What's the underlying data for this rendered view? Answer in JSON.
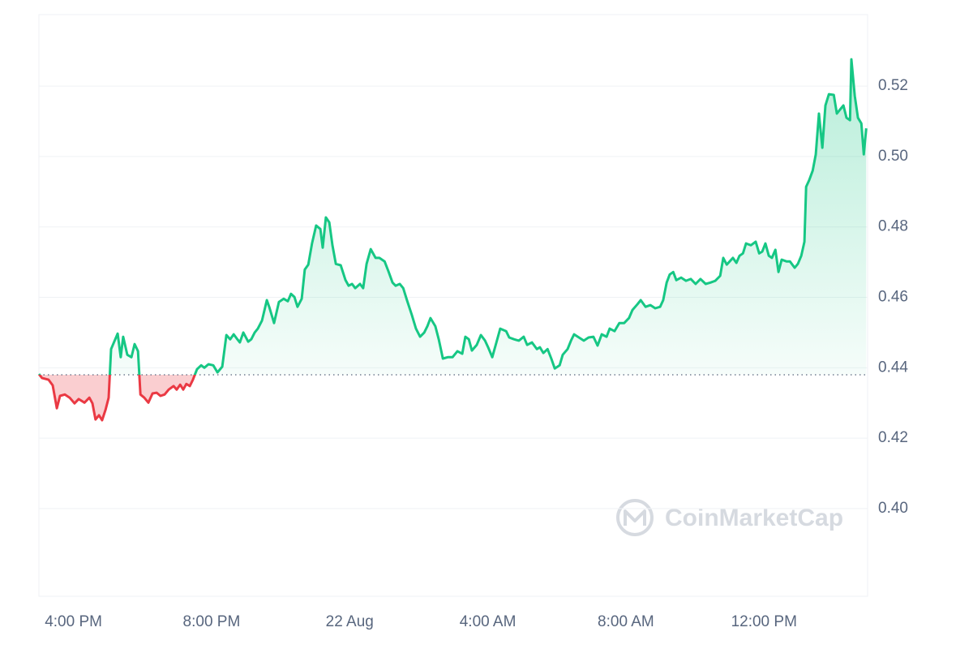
{
  "chart_data": {
    "type": "area",
    "watermark": "CoinMarketCap",
    "x": [
      15.0,
      15.09,
      15.28,
      15.4,
      15.52,
      15.61,
      15.75,
      15.89,
      16.03,
      16.15,
      16.32,
      16.46,
      16.55,
      16.64,
      16.74,
      16.83,
      16.93,
      17.02,
      17.09,
      17.28,
      17.37,
      17.44,
      17.56,
      17.68,
      17.77,
      17.87,
      17.94,
      18.05,
      18.17,
      18.29,
      18.41,
      18.52,
      18.64,
      18.76,
      18.9,
      18.99,
      19.09,
      19.18,
      19.27,
      19.37,
      19.46,
      19.58,
      19.7,
      19.79,
      19.91,
      20.05,
      20.17,
      20.31,
      20.43,
      20.54,
      20.64,
      20.73,
      20.82,
      20.92,
      21.06,
      21.15,
      21.25,
      21.34,
      21.46,
      21.6,
      21.67,
      21.81,
      21.95,
      22.09,
      22.21,
      22.3,
      22.4,
      22.49,
      22.61,
      22.7,
      22.8,
      22.91,
      23.03,
      23.15,
      23.22,
      23.31,
      23.41,
      23.5,
      23.6,
      23.74,
      23.88,
      23.97,
      24.07,
      24.16,
      24.3,
      24.39,
      24.49,
      24.61,
      24.75,
      24.86,
      25.01,
      25.12,
      25.24,
      25.33,
      25.45,
      25.55,
      25.66,
      25.8,
      25.92,
      26.04,
      26.16,
      26.25,
      26.34,
      26.48,
      26.58,
      26.7,
      26.84,
      26.98,
      27.12,
      27.26,
      27.35,
      27.45,
      27.54,
      27.68,
      27.8,
      27.92,
      28.01,
      28.13,
      28.25,
      28.36,
      28.53,
      28.62,
      28.76,
      28.9,
      29.04,
      29.14,
      29.28,
      29.42,
      29.51,
      29.61,
      29.73,
      29.84,
      29.94,
      30.08,
      30.17,
      30.31,
      30.41,
      30.5,
      30.64,
      30.78,
      30.92,
      31.06,
      31.18,
      31.3,
      31.44,
      31.53,
      31.67,
      31.81,
      31.95,
      32.09,
      32.19,
      32.33,
      32.43,
      32.57,
      32.71,
      32.85,
      32.99,
      33.08,
      33.18,
      33.27,
      33.37,
      33.46,
      33.6,
      33.74,
      33.88,
      34.02,
      34.16,
      34.31,
      34.45,
      34.59,
      34.73,
      34.82,
      34.92,
      35.1,
      35.2,
      35.29,
      35.39,
      35.48,
      35.62,
      35.76,
      35.86,
      35.95,
      36.04,
      36.14,
      36.23,
      36.33,
      36.42,
      36.51,
      36.65,
      36.75,
      36.89,
      36.98,
      37.08,
      37.17,
      37.22,
      37.31,
      37.41,
      37.5,
      37.59,
      37.69,
      37.78,
      37.88,
      38.02,
      38.11,
      38.2,
      38.3,
      38.39,
      38.49,
      38.53,
      38.63,
      38.72,
      38.82,
      38.89,
      38.96
    ],
    "series": [
      {
        "up_color": "#16c784",
        "down_color": "#ea3943",
        "values": [
          0.4382,
          0.4371,
          0.4366,
          0.435,
          0.4285,
          0.432,
          0.4324,
          0.4315,
          0.4299,
          0.4311,
          0.4301,
          0.4315,
          0.4299,
          0.4253,
          0.4265,
          0.4251,
          0.4281,
          0.4315,
          0.4453,
          0.4497,
          0.443,
          0.4488,
          0.4437,
          0.443,
          0.4467,
          0.4447,
          0.4324,
          0.4315,
          0.4301,
          0.4327,
          0.4329,
          0.432,
          0.4324,
          0.4338,
          0.4348,
          0.4338,
          0.4352,
          0.4338,
          0.4354,
          0.4348,
          0.4366,
          0.4396,
          0.4407,
          0.44,
          0.441,
          0.4407,
          0.4387,
          0.4403,
          0.4493,
          0.4481,
          0.4495,
          0.4483,
          0.4472,
          0.45,
          0.4474,
          0.4481,
          0.45,
          0.4511,
          0.4534,
          0.4592,
          0.4573,
          0.4527,
          0.4587,
          0.4596,
          0.4589,
          0.461,
          0.4601,
          0.4573,
          0.4596,
          0.4679,
          0.4693,
          0.4753,
          0.4804,
          0.4794,
          0.4741,
          0.4827,
          0.4813,
          0.4748,
          0.4695,
          0.4691,
          0.4649,
          0.4633,
          0.4638,
          0.4626,
          0.4638,
          0.4626,
          0.4695,
          0.4737,
          0.4712,
          0.4712,
          0.4702,
          0.4675,
          0.4642,
          0.4633,
          0.4638,
          0.4626,
          0.4592,
          0.455,
          0.4511,
          0.4488,
          0.45,
          0.4518,
          0.4541,
          0.4518,
          0.4481,
          0.4426,
          0.443,
          0.443,
          0.4447,
          0.444,
          0.4488,
          0.4481,
          0.4449,
          0.4465,
          0.4493,
          0.4477,
          0.4458,
          0.443,
          0.4472,
          0.4511,
          0.4504,
          0.4486,
          0.4481,
          0.4477,
          0.4488,
          0.4465,
          0.4472,
          0.4453,
          0.4458,
          0.4442,
          0.4453,
          0.4426,
          0.4398,
          0.4407,
          0.4437,
          0.4453,
          0.4477,
          0.4495,
          0.4486,
          0.4477,
          0.4486,
          0.4488,
          0.4463,
          0.4495,
          0.4488,
          0.4511,
          0.4504,
          0.4527,
          0.4527,
          0.4541,
          0.4564,
          0.458,
          0.4592,
          0.4573,
          0.4578,
          0.4569,
          0.4573,
          0.4592,
          0.4642,
          0.4665,
          0.4672,
          0.4649,
          0.4656,
          0.4647,
          0.4652,
          0.4638,
          0.4652,
          0.4638,
          0.4642,
          0.4647,
          0.4661,
          0.4712,
          0.4693,
          0.4712,
          0.4698,
          0.4718,
          0.4725,
          0.4753,
          0.4748,
          0.4758,
          0.4725,
          0.473,
          0.4753,
          0.4718,
          0.4712,
          0.4735,
          0.4672,
          0.4707,
          0.4702,
          0.4702,
          0.4684,
          0.4695,
          0.4718,
          0.4758,
          0.4914,
          0.4933,
          0.496,
          0.5006,
          0.5122,
          0.5025,
          0.5145,
          0.5177,
          0.5175,
          0.5122,
          0.5133,
          0.5145,
          0.511,
          0.5103,
          0.5276,
          0.5172,
          0.511,
          0.5094,
          0.5006,
          0.508
        ]
      }
    ],
    "reference_line": 0.438,
    "xlim": [
      15,
      39
    ],
    "xticks": [
      {
        "value": 16,
        "label": "4:00 PM"
      },
      {
        "value": 20,
        "label": "8:00 PM"
      },
      {
        "value": 24,
        "label": "22 Aug"
      },
      {
        "value": 28,
        "label": "4:00 AM"
      },
      {
        "value": 32,
        "label": "8:00 AM"
      },
      {
        "value": 36,
        "label": "12:00 PM"
      }
    ],
    "ylim": [
      0.3751,
      0.5403
    ],
    "yticks": [
      {
        "value": 0.4,
        "label": "0.40"
      },
      0.42,
      0.44,
      0.46,
      0.48,
      {
        "value": 0.5,
        "label": "0.50"
      },
      0.52
    ],
    "y_axis_side": "right",
    "grid": true
  }
}
